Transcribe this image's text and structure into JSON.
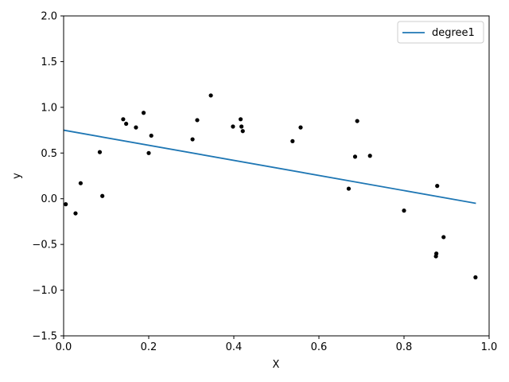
{
  "chart_data": {
    "type": "scatter",
    "title": "",
    "xlabel": "X",
    "ylabel": "y",
    "xlim": [
      0.0,
      1.0
    ],
    "ylim": [
      -1.5,
      2.0
    ],
    "xticks": [
      "0.0",
      "0.2",
      "0.4",
      "0.6",
      "0.8",
      "1.0"
    ],
    "yticks": [
      "−1.5",
      "−1.0",
      "−0.5",
      "0.0",
      "0.5",
      "1.0",
      "1.5",
      "2.0"
    ],
    "xtick_values": [
      0.0,
      0.2,
      0.4,
      0.6,
      0.8,
      1.0
    ],
    "ytick_values": [
      -1.5,
      -1.0,
      -0.5,
      0.0,
      0.5,
      1.0,
      1.5,
      2.0
    ],
    "grid": false,
    "legend_position": "top-right",
    "series": [
      {
        "name": "degree1",
        "kind": "line",
        "color": "#1f77b4",
        "x": [
          0.0,
          0.969
        ],
        "y": [
          0.75,
          -0.05
        ]
      },
      {
        "kind": "scatter",
        "color": "#000000",
        "x": [
          0.005,
          0.028,
          0.04,
          0.085,
          0.091,
          0.14,
          0.147,
          0.17,
          0.188,
          0.2,
          0.206,
          0.303,
          0.314,
          0.346,
          0.398,
          0.416,
          0.418,
          0.421,
          0.538,
          0.557,
          0.67,
          0.685,
          0.69,
          0.72,
          0.8,
          0.875,
          0.876,
          0.878,
          0.893,
          0.968
        ],
        "y": [
          -0.06,
          -0.16,
          0.17,
          0.51,
          0.03,
          0.87,
          0.82,
          0.78,
          0.94,
          0.5,
          0.69,
          0.65,
          0.86,
          1.13,
          0.79,
          0.87,
          0.79,
          0.74,
          0.63,
          0.78,
          0.11,
          0.46,
          0.85,
          0.47,
          -0.13,
          -0.63,
          -0.6,
          0.14,
          -0.42,
          -0.86
        ]
      }
    ]
  }
}
